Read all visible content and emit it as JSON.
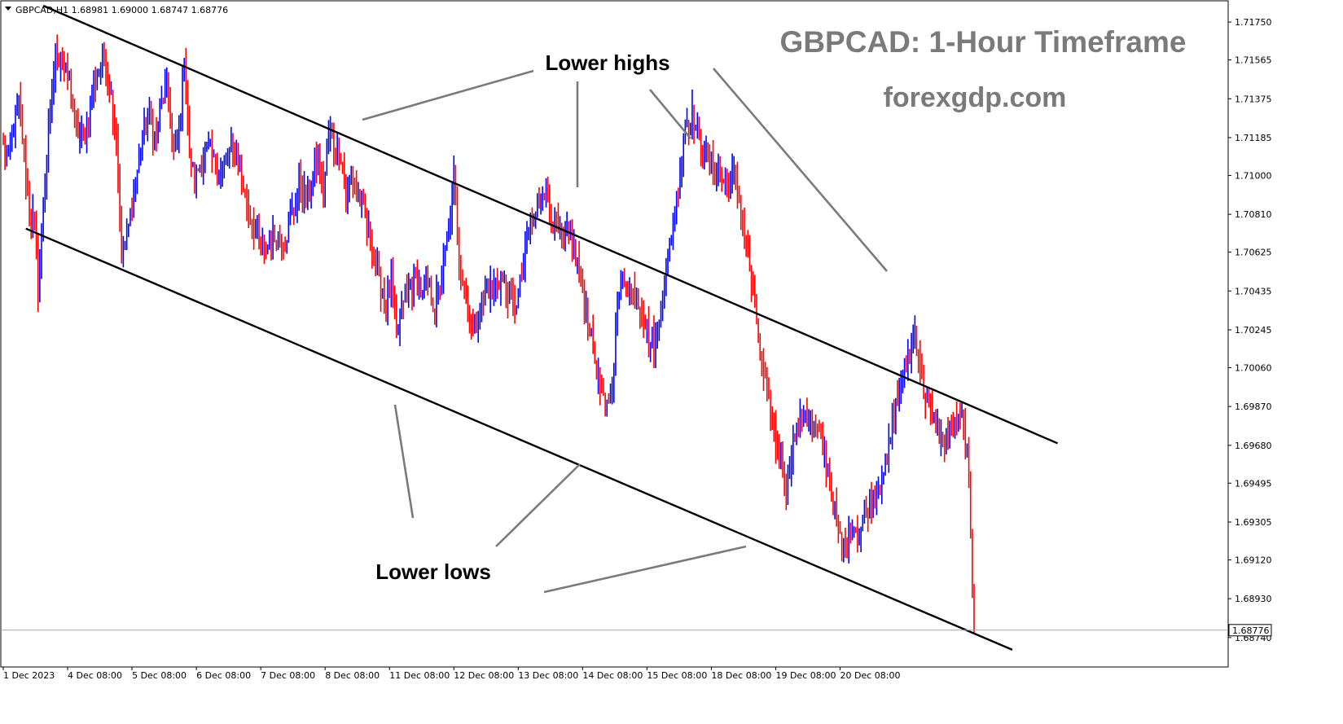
{
  "chart_data": {
    "type": "candlestick",
    "symbol_info": "GBPCAD,H1  1.68981 1.69000 1.68747 1.68776",
    "title": "GBPCAD: 1-Hour Timeframe",
    "subtitle": "forexgdp.com",
    "ylim": [
      1.686,
      1.7185
    ],
    "y_ticks": [
      "1.71750",
      "1.71565",
      "1.71375",
      "1.71185",
      "1.71000",
      "1.70810",
      "1.70625",
      "1.70435",
      "1.70245",
      "1.70060",
      "1.69870",
      "1.69680",
      "1.69495",
      "1.69305",
      "1.69120",
      "1.68930",
      "1.68740"
    ],
    "x_ticks": [
      "1 Dec 2023",
      "4 Dec 08:00",
      "5 Dec 08:00",
      "6 Dec 08:00",
      "7 Dec 08:00",
      "8 Dec 08:00",
      "11 Dec 08:00",
      "12 Dec 08:00",
      "13 Dec 08:00",
      "14 Dec 08:00",
      "15 Dec 08:00",
      "18 Dec 08:00",
      "19 Dec 08:00",
      "20 Dec 08:00"
    ],
    "current_price": "1.68776",
    "grid": false,
    "up_color": "#0000ff",
    "down_color": "#ff0000",
    "price_waypoints": [
      [
        0,
        1.7115
      ],
      [
        3,
        1.7108
      ],
      [
        6,
        1.7125
      ],
      [
        9,
        1.7135
      ],
      [
        12,
        1.7108
      ],
      [
        15,
        1.7082
      ],
      [
        18,
        1.7078
      ],
      [
        20,
        1.7045
      ],
      [
        23,
        1.7085
      ],
      [
        26,
        1.712
      ],
      [
        30,
        1.716
      ],
      [
        34,
        1.7155
      ],
      [
        38,
        1.7145
      ],
      [
        42,
        1.7122
      ],
      [
        46,
        1.7118
      ],
      [
        50,
        1.7135
      ],
      [
        54,
        1.715
      ],
      [
        58,
        1.716
      ],
      [
        62,
        1.714
      ],
      [
        65,
        1.712
      ],
      [
        68,
        1.706
      ],
      [
        72,
        1.7075
      ],
      [
        76,
        1.7095
      ],
      [
        80,
        1.712
      ],
      [
        84,
        1.713
      ],
      [
        88,
        1.7115
      ],
      [
        90,
        1.713
      ],
      [
        94,
        1.7145
      ],
      [
        98,
        1.711
      ],
      [
        101,
        1.712
      ],
      [
        104,
        1.716
      ],
      [
        107,
        1.711
      ],
      [
        110,
        1.7098
      ],
      [
        114,
        1.7108
      ],
      [
        118,
        1.7112
      ],
      [
        122,
        1.7105
      ],
      [
        126,
        1.7102
      ],
      [
        130,
        1.7112
      ],
      [
        134,
        1.711
      ],
      [
        138,
        1.7095
      ],
      [
        142,
        1.708
      ],
      [
        146,
        1.707
      ],
      [
        150,
        1.7062
      ],
      [
        154,
        1.7068
      ],
      [
        158,
        1.707
      ],
      [
        162,
        1.7068
      ],
      [
        166,
        1.7082
      ],
      [
        170,
        1.7095
      ],
      [
        174,
        1.709
      ],
      [
        178,
        1.71
      ],
      [
        181,
        1.711
      ],
      [
        184,
        1.709
      ],
      [
        187,
        1.712
      ],
      [
        190,
        1.7115
      ],
      [
        194,
        1.711
      ],
      [
        197,
        1.7088
      ],
      [
        200,
        1.7098
      ],
      [
        204,
        1.7092
      ],
      [
        208,
        1.7078
      ],
      [
        212,
        1.7065
      ],
      [
        216,
        1.705
      ],
      [
        220,
        1.7035
      ],
      [
        223,
        1.705
      ],
      [
        226,
        1.702
      ],
      [
        230,
        1.704
      ],
      [
        234,
        1.7045
      ],
      [
        238,
        1.705
      ],
      [
        241,
        1.704
      ],
      [
        244,
        1.7045
      ],
      [
        248,
        1.7035
      ],
      [
        252,
        1.705
      ],
      [
        256,
        1.7075
      ],
      [
        259,
        1.7098
      ],
      [
        262,
        1.706
      ],
      [
        266,
        1.704
      ],
      [
        270,
        1.7025
      ],
      [
        274,
        1.7035
      ],
      [
        278,
        1.7045
      ],
      [
        282,
        1.7045
      ],
      [
        286,
        1.705
      ],
      [
        290,
        1.7042
      ],
      [
        294,
        1.7035
      ],
      [
        298,
        1.705
      ],
      [
        302,
        1.7075
      ],
      [
        306,
        1.708
      ],
      [
        310,
        1.7095
      ],
      [
        314,
        1.7085
      ],
      [
        318,
        1.7075
      ],
      [
        322,
        1.7068
      ],
      [
        326,
        1.707
      ],
      [
        330,
        1.7058
      ],
      [
        334,
        1.704
      ],
      [
        338,
        1.702
      ],
      [
        342,
        1.7
      ],
      [
        346,
        1.6985
      ],
      [
        350,
        1.6995
      ],
      [
        352,
        1.703
      ],
      [
        356,
        1.705
      ],
      [
        360,
        1.7045
      ],
      [
        364,
        1.704
      ],
      [
        368,
        1.7032
      ],
      [
        372,
        1.7018
      ],
      [
        376,
        1.702
      ],
      [
        380,
        1.705
      ],
      [
        384,
        1.707
      ],
      [
        388,
        1.7095
      ],
      [
        392,
        1.7125
      ],
      [
        396,
        1.713
      ],
      [
        400,
        1.7118
      ],
      [
        404,
        1.7112
      ],
      [
        408,
        1.7105
      ],
      [
        412,
        1.71
      ],
      [
        416,
        1.7095
      ],
      [
        420,
        1.71
      ],
      [
        424,
        1.7085
      ],
      [
        428,
        1.706
      ],
      [
        432,
        1.7035
      ],
      [
        436,
        1.7005
      ],
      [
        440,
        1.699
      ],
      [
        444,
        1.697
      ],
      [
        448,
        1.696
      ],
      [
        450,
        1.6945
      ],
      [
        453,
        1.6965
      ],
      [
        456,
        1.6975
      ],
      [
        460,
        1.6985
      ],
      [
        464,
        1.698
      ],
      [
        468,
        1.6975
      ],
      [
        472,
        1.6965
      ],
      [
        476,
        1.6945
      ],
      [
        480,
        1.6925
      ],
      [
        484,
        1.6915
      ],
      [
        488,
        1.693
      ],
      [
        492,
        1.6925
      ],
      [
        496,
        1.6935
      ],
      [
        500,
        1.6945
      ],
      [
        504,
        1.6952
      ],
      [
        508,
        1.696
      ],
      [
        512,
        1.6985
      ],
      [
        516,
        1.6998
      ],
      [
        520,
        1.701
      ],
      [
        524,
        1.7025
      ],
      [
        528,
        1.7
      ],
      [
        532,
        1.6985
      ],
      [
        536,
        1.6978
      ],
      [
        540,
        1.697
      ],
      [
        544,
        1.6975
      ],
      [
        548,
        1.6978
      ],
      [
        551,
        1.6982
      ],
      [
        554,
        1.6965
      ],
      [
        556,
        1.692
      ],
      [
        558,
        1.6878
      ]
    ],
    "bar_count": 559,
    "upper_channel_line": {
      "start_bar": 23,
      "start_price": 1.7183,
      "end_bar": 606,
      "end_price": 1.6969
    },
    "lower_channel_line": {
      "start_bar": 13,
      "start_price": 1.7074,
      "end_bar": 580,
      "end_price": 1.6868
    },
    "annotations": [
      {
        "label": "Lower highs",
        "pointer_count": 4
      },
      {
        "label": "Lower lows",
        "pointer_count": 4
      }
    ]
  }
}
